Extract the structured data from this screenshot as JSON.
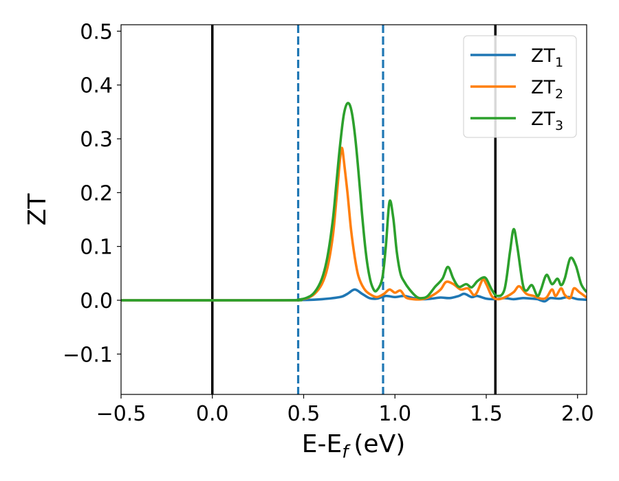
{
  "chart_data": {
    "type": "line",
    "xlabel": "E-E",
    "xlabel_subscript": "f",
    "xlabel_unit": "(eV)",
    "ylabel": "ZT",
    "xlim": [
      -0.5,
      2.05
    ],
    "ylim": [
      -0.175,
      0.512
    ],
    "x_ticks": [
      -0.5,
      0.0,
      0.5,
      1.0,
      1.5,
      2.0
    ],
    "x_tick_labels": [
      "−0.5",
      "0.0",
      "0.5",
      "1.0",
      "1.5",
      "2.0"
    ],
    "y_ticks": [
      -0.1,
      0.0,
      0.1,
      0.2,
      0.3,
      0.4,
      0.5
    ],
    "y_tick_labels": [
      "−0.1",
      "0.0",
      "0.1",
      "0.2",
      "0.3",
      "0.4",
      "0.5"
    ],
    "grid": false,
    "legend_position": "top-right",
    "vertical_lines": [
      {
        "x": 0.0,
        "style": "solid",
        "color": "#000000"
      },
      {
        "x": 0.47,
        "style": "dashed",
        "color": "#1f77b4"
      },
      {
        "x": 0.935,
        "style": "dashed",
        "color": "#1f77b4"
      },
      {
        "x": 1.55,
        "style": "solid",
        "color": "#000000"
      }
    ],
    "series": [
      {
        "name": "ZT",
        "subscript": "1",
        "color": "#1f77b4",
        "points": [
          [
            -0.5,
            0
          ],
          [
            0.3,
            0
          ],
          [
            0.5,
            0.0005
          ],
          [
            0.6,
            0.002
          ],
          [
            0.7,
            0.006
          ],
          [
            0.74,
            0.012
          ],
          [
            0.78,
            0.02
          ],
          [
            0.82,
            0.012
          ],
          [
            0.86,
            0.004
          ],
          [
            0.9,
            0.003
          ],
          [
            0.95,
            0.008
          ],
          [
            1.0,
            0.006
          ],
          [
            1.05,
            0.008
          ],
          [
            1.1,
            0.004
          ],
          [
            1.15,
            0.002
          ],
          [
            1.2,
            0.003
          ],
          [
            1.25,
            0.005
          ],
          [
            1.3,
            0.004
          ],
          [
            1.35,
            0.008
          ],
          [
            1.38,
            0.012
          ],
          [
            1.42,
            0.006
          ],
          [
            1.45,
            0.008
          ],
          [
            1.5,
            0.003
          ],
          [
            1.55,
            0.002
          ],
          [
            1.6,
            0.004
          ],
          [
            1.65,
            0.002
          ],
          [
            1.7,
            0.004
          ],
          [
            1.75,
            0.003
          ],
          [
            1.78,
            0.002
          ],
          [
            1.82,
            -0.002
          ],
          [
            1.85,
            0.004
          ],
          [
            1.9,
            0.003
          ],
          [
            1.95,
            0.006
          ],
          [
            2.0,
            0.002
          ],
          [
            2.05,
            0.001
          ]
        ]
      },
      {
        "name": "ZT",
        "subscript": "2",
        "color": "#ff7f0e",
        "points": [
          [
            -0.5,
            0
          ],
          [
            0.4,
            0
          ],
          [
            0.47,
            0.001
          ],
          [
            0.52,
            0.004
          ],
          [
            0.56,
            0.012
          ],
          [
            0.6,
            0.03
          ],
          [
            0.63,
            0.06
          ],
          [
            0.66,
            0.12
          ],
          [
            0.68,
            0.19
          ],
          [
            0.7,
            0.265
          ],
          [
            0.71,
            0.283
          ],
          [
            0.72,
            0.26
          ],
          [
            0.74,
            0.2
          ],
          [
            0.76,
            0.13
          ],
          [
            0.78,
            0.08
          ],
          [
            0.8,
            0.045
          ],
          [
            0.83,
            0.022
          ],
          [
            0.86,
            0.012
          ],
          [
            0.9,
            0.006
          ],
          [
            0.94,
            0.012
          ],
          [
            0.97,
            0.02
          ],
          [
            1.0,
            0.014
          ],
          [
            1.03,
            0.018
          ],
          [
            1.06,
            0.005
          ],
          [
            1.1,
            0.002
          ],
          [
            1.15,
            0.002
          ],
          [
            1.2,
            0.008
          ],
          [
            1.25,
            0.02
          ],
          [
            1.28,
            0.034
          ],
          [
            1.32,
            0.03
          ],
          [
            1.36,
            0.02
          ],
          [
            1.4,
            0.022
          ],
          [
            1.43,
            0.01
          ],
          [
            1.45,
            0.015
          ],
          [
            1.48,
            0.038
          ],
          [
            1.5,
            0.03
          ],
          [
            1.53,
            0.008
          ],
          [
            1.56,
            0.002
          ],
          [
            1.6,
            0.005
          ],
          [
            1.65,
            0.015
          ],
          [
            1.68,
            0.026
          ],
          [
            1.72,
            0.012
          ],
          [
            1.76,
            0.008
          ],
          [
            1.8,
            0.003
          ],
          [
            1.83,
            0.005
          ],
          [
            1.86,
            0.02
          ],
          [
            1.88,
            0.008
          ],
          [
            1.91,
            0.022
          ],
          [
            1.93,
            0.01
          ],
          [
            1.96,
            0.004
          ],
          [
            1.98,
            0.022
          ],
          [
            2.01,
            0.015
          ],
          [
            2.05,
            0.005
          ]
        ]
      },
      {
        "name": "ZT",
        "subscript": "3",
        "color": "#2ca02c",
        "points": [
          [
            -0.5,
            0
          ],
          [
            0.4,
            0
          ],
          [
            0.47,
            0.001
          ],
          [
            0.52,
            0.005
          ],
          [
            0.56,
            0.015
          ],
          [
            0.6,
            0.04
          ],
          [
            0.63,
            0.08
          ],
          [
            0.66,
            0.15
          ],
          [
            0.68,
            0.22
          ],
          [
            0.7,
            0.29
          ],
          [
            0.72,
            0.345
          ],
          [
            0.74,
            0.366
          ],
          [
            0.76,
            0.355
          ],
          [
            0.78,
            0.31
          ],
          [
            0.8,
            0.24
          ],
          [
            0.82,
            0.16
          ],
          [
            0.84,
            0.09
          ],
          [
            0.86,
            0.045
          ],
          [
            0.88,
            0.022
          ],
          [
            0.9,
            0.018
          ],
          [
            0.93,
            0.04
          ],
          [
            0.95,
            0.1
          ],
          [
            0.97,
            0.183
          ],
          [
            0.99,
            0.155
          ],
          [
            1.01,
            0.09
          ],
          [
            1.03,
            0.05
          ],
          [
            1.05,
            0.035
          ],
          [
            1.08,
            0.02
          ],
          [
            1.12,
            0.006
          ],
          [
            1.15,
            0.004
          ],
          [
            1.18,
            0.008
          ],
          [
            1.22,
            0.025
          ],
          [
            1.26,
            0.04
          ],
          [
            1.29,
            0.062
          ],
          [
            1.32,
            0.04
          ],
          [
            1.35,
            0.025
          ],
          [
            1.39,
            0.03
          ],
          [
            1.42,
            0.024
          ],
          [
            1.45,
            0.035
          ],
          [
            1.48,
            0.042
          ],
          [
            1.5,
            0.04
          ],
          [
            1.53,
            0.02
          ],
          [
            1.56,
            0.008
          ],
          [
            1.6,
            0.02
          ],
          [
            1.63,
            0.09
          ],
          [
            1.65,
            0.132
          ],
          [
            1.67,
            0.1
          ],
          [
            1.7,
            0.03
          ],
          [
            1.72,
            0.018
          ],
          [
            1.75,
            0.028
          ],
          [
            1.78,
            0.008
          ],
          [
            1.8,
            0.02
          ],
          [
            1.83,
            0.047
          ],
          [
            1.86,
            0.03
          ],
          [
            1.89,
            0.04
          ],
          [
            1.91,
            0.028
          ],
          [
            1.93,
            0.04
          ],
          [
            1.96,
            0.078
          ],
          [
            1.99,
            0.065
          ],
          [
            2.02,
            0.03
          ],
          [
            2.05,
            0.015
          ]
        ]
      }
    ]
  }
}
